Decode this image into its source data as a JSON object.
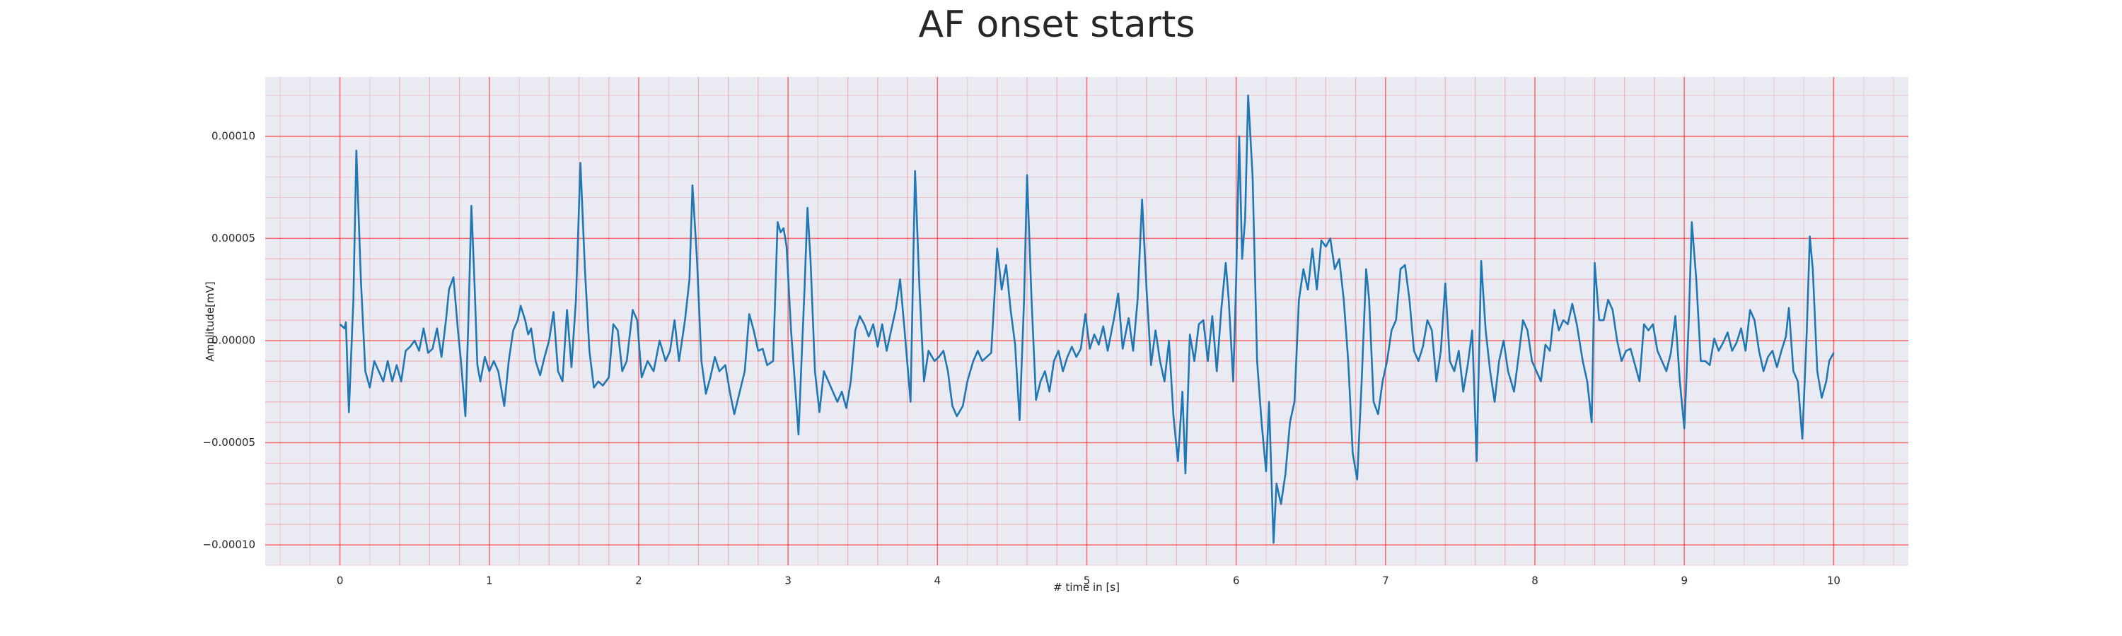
{
  "chart_data": {
    "type": "line",
    "title": "AF onset starts",
    "x_label": "# time in [s]",
    "y_label": "Amplitude[mV]",
    "color": "#1f77b4",
    "grid": true,
    "grid_color": "#ff0000",
    "background": "#eaeaf2",
    "xlim": [
      -0.5,
      10.5
    ],
    "xticks": [
      0,
      1,
      2,
      3,
      4,
      5,
      6,
      7,
      8,
      9,
      10
    ],
    "ylim": [
      -0.00011,
      0.000129
    ],
    "yticks": [
      {
        "value": -0.0001,
        "label": "−0.00010"
      },
      {
        "value": -5e-05,
        "label": "−0.00005"
      },
      {
        "value": 0,
        "label": "0.00000"
      },
      {
        "value": 5e-05,
        "label": "0.00005"
      },
      {
        "value": 0.0001,
        "label": "0.00010"
      }
    ],
    "x": [
      0.0,
      0.03,
      0.04,
      0.06,
      0.09,
      0.11,
      0.14,
      0.17,
      0.2,
      0.23,
      0.26,
      0.29,
      0.32,
      0.35,
      0.38,
      0.41,
      0.44,
      0.47,
      0.5,
      0.53,
      0.56,
      0.59,
      0.62,
      0.65,
      0.68,
      0.71,
      0.73,
      0.76,
      0.79,
      0.81,
      0.84,
      0.86,
      0.88,
      0.9,
      0.92,
      0.94,
      0.97,
      1.0,
      1.03,
      1.06,
      1.1,
      1.13,
      1.16,
      1.19,
      1.21,
      1.24,
      1.26,
      1.28,
      1.31,
      1.34,
      1.37,
      1.4,
      1.43,
      1.46,
      1.49,
      1.52,
      1.55,
      1.58,
      1.61,
      1.64,
      1.67,
      1.7,
      1.73,
      1.76,
      1.8,
      1.83,
      1.86,
      1.89,
      1.92,
      1.96,
      1.99,
      2.02,
      2.06,
      2.1,
      2.14,
      2.18,
      2.21,
      2.24,
      2.27,
      2.31,
      2.34,
      2.36,
      2.39,
      2.42,
      2.45,
      2.48,
      2.51,
      2.54,
      2.58,
      2.61,
      2.64,
      2.68,
      2.71,
      2.74,
      2.77,
      2.8,
      2.83,
      2.86,
      2.9,
      2.93,
      2.95,
      2.97,
      2.99,
      3.02,
      3.05,
      3.07,
      3.09,
      3.11,
      3.13,
      3.15,
      3.18,
      3.21,
      3.24,
      3.27,
      3.3,
      3.33,
      3.36,
      3.39,
      3.42,
      3.45,
      3.48,
      3.51,
      3.54,
      3.57,
      3.6,
      3.63,
      3.66,
      3.69,
      3.72,
      3.75,
      3.78,
      3.82,
      3.85,
      3.88,
      3.91,
      3.94,
      3.98,
      4.01,
      4.04,
      4.07,
      4.1,
      4.13,
      4.17,
      4.2,
      4.24,
      4.27,
      4.3,
      4.33,
      4.36,
      4.4,
      4.43,
      4.46,
      4.49,
      4.52,
      4.55,
      4.58,
      4.6,
      4.63,
      4.66,
      4.69,
      4.72,
      4.75,
      4.78,
      4.81,
      4.84,
      4.87,
      4.9,
      4.93,
      4.96,
      4.99,
      5.02,
      5.05,
      5.08,
      5.11,
      5.14,
      5.18,
      5.21,
      5.24,
      5.28,
      5.31,
      5.34,
      5.37,
      5.4,
      5.43,
      5.46,
      5.49,
      5.52,
      5.55,
      5.58,
      5.61,
      5.64,
      5.66,
      5.69,
      5.72,
      5.75,
      5.78,
      5.81,
      5.84,
      5.87,
      5.9,
      5.93,
      5.95,
      5.98,
      6.0,
      6.02,
      6.04,
      6.06,
      6.08,
      6.11,
      6.14,
      6.17,
      6.2,
      6.22,
      6.25,
      6.27,
      6.3,
      6.33,
      6.36,
      6.39,
      6.42,
      6.45,
      6.48,
      6.51,
      6.54,
      6.57,
      6.6,
      6.63,
      6.66,
      6.69,
      6.72,
      6.75,
      6.78,
      6.81,
      6.84,
      6.87,
      6.89,
      6.92,
      6.95,
      6.98,
      7.01,
      7.04,
      7.07,
      7.1,
      7.13,
      7.16,
      7.19,
      7.22,
      7.25,
      7.28,
      7.31,
      7.34,
      7.37,
      7.4,
      7.43,
      7.46,
      7.49,
      7.52,
      7.55,
      7.58,
      7.61,
      7.64,
      7.67,
      7.7,
      7.73,
      7.76,
      7.79,
      7.82,
      7.86,
      7.89,
      7.92,
      7.95,
      7.98,
      8.01,
      8.04,
      8.07,
      8.1,
      8.13,
      8.16,
      8.19,
      8.22,
      8.25,
      8.28,
      8.32,
      8.35,
      8.38,
      8.4,
      8.43,
      8.46,
      8.49,
      8.52,
      8.55,
      8.58,
      8.61,
      8.64,
      8.67,
      8.7,
      8.73,
      8.76,
      8.79,
      8.82,
      8.85,
      8.88,
      8.91,
      8.94,
      8.97,
      9.0,
      9.03,
      9.05,
      9.08,
      9.11,
      9.14,
      9.17,
      9.2,
      9.23,
      9.26,
      9.29,
      9.32,
      9.35,
      9.38,
      9.41,
      9.44,
      9.47,
      9.5,
      9.53,
      9.56,
      9.59,
      9.62,
      9.65,
      9.68,
      9.7,
      9.73,
      9.76,
      9.79,
      9.82,
      9.84,
      9.86,
      9.89,
      9.92,
      9.95,
      9.97,
      10.0
    ],
    "values": [
      8e-06,
      6e-06,
      9e-06,
      -3.5e-05,
      2e-05,
      9.3e-05,
      3e-05,
      -1.5e-05,
      -2.3e-05,
      -1e-05,
      -1.5e-05,
      -2e-05,
      -1e-05,
      -2e-05,
      -1.2e-05,
      -2e-05,
      -5e-06,
      -3e-06,
      0,
      -5e-06,
      6e-06,
      -6e-06,
      -4e-06,
      6e-06,
      -8e-06,
      1e-05,
      2.5e-05,
      3.1e-05,
      5e-06,
      -1e-05,
      -3.7e-05,
      1e-05,
      6.6e-05,
      3e-05,
      -1.2e-05,
      -2e-05,
      -8e-06,
      -1.5e-05,
      -1e-05,
      -1.5e-05,
      -3.2e-05,
      -1e-05,
      5e-06,
      1e-05,
      1.7e-05,
      1e-05,
      3e-06,
      6e-06,
      -1e-05,
      -1.7e-05,
      -8e-06,
      0,
      1.4e-05,
      -1.5e-05,
      -2e-05,
      1.5e-05,
      -1.3e-05,
      2e-05,
      8.7e-05,
      3.5e-05,
      -5e-06,
      -2.3e-05,
      -2e-05,
      -2.2e-05,
      -1.8e-05,
      8e-06,
      5e-06,
      -1.5e-05,
      -1e-05,
      1.5e-05,
      1e-05,
      -1.8e-05,
      -1e-05,
      -1.5e-05,
      0,
      -1e-05,
      -5e-06,
      1e-05,
      -1e-05,
      1e-05,
      3e-05,
      7.6e-05,
      4e-05,
      -1e-05,
      -2.6e-05,
      -1.8e-05,
      -8e-06,
      -1.5e-05,
      -1.2e-05,
      -2.5e-05,
      -3.6e-05,
      -2.4e-05,
      -1.5e-05,
      1.3e-05,
      5e-06,
      -5e-06,
      -4e-06,
      -1.2e-05,
      -1e-05,
      5.8e-05,
      5.3e-05,
      5.5e-05,
      4.6e-05,
      5e-06,
      -2.5e-05,
      -4.6e-05,
      -1e-05,
      2.5e-05,
      6.5e-05,
      4e-05,
      -1.5e-05,
      -3.5e-05,
      -1.5e-05,
      -2e-05,
      -2.5e-05,
      -3e-05,
      -2.5e-05,
      -3.3e-05,
      -2e-05,
      5e-06,
      1.2e-05,
      8e-06,
      2e-06,
      8e-06,
      -3e-06,
      8e-06,
      -5e-06,
      5e-06,
      1.5e-05,
      3e-05,
      5e-06,
      -3e-05,
      8.3e-05,
      2.5e-05,
      -2e-05,
      -5e-06,
      -1e-05,
      -8e-06,
      -5e-06,
      -1.5e-05,
      -3.2e-05,
      -3.7e-05,
      -3.2e-05,
      -2e-05,
      -1e-05,
      -5e-06,
      -1e-05,
      -8e-06,
      -6e-06,
      4.5e-05,
      2.5e-05,
      3.7e-05,
      1.5e-05,
      -2e-06,
      -3.9e-05,
      2e-05,
      8.1e-05,
      2e-05,
      -2.9e-05,
      -2e-05,
      -1.5e-05,
      -2.5e-05,
      -1e-05,
      -5e-06,
      -1.5e-05,
      -8e-06,
      -3e-06,
      -8e-06,
      -4e-06,
      1.3e-05,
      -4e-06,
      3e-06,
      -2e-06,
      7e-06,
      -5e-06,
      1e-05,
      2.3e-05,
      -4e-06,
      1.1e-05,
      -5e-06,
      2e-05,
      6.9e-05,
      2.5e-05,
      -1.2e-05,
      5e-06,
      -1e-05,
      -2e-05,
      0,
      -3.7e-05,
      -5.9e-05,
      -2.5e-05,
      -6.5e-05,
      3e-06,
      -1e-05,
      8e-06,
      1e-05,
      -1e-05,
      1.2e-05,
      -1.5e-05,
      1.5e-05,
      3.8e-05,
      2e-05,
      -2e-05,
      3e-05,
      0.0001,
      4e-05,
      6e-05,
      0.00012,
      8e-05,
      -1e-05,
      -4e-05,
      -6.4e-05,
      -3e-05,
      -9.9e-05,
      -7e-05,
      -8e-05,
      -6.5e-05,
      -4e-05,
      -3e-05,
      2e-05,
      3.5e-05,
      2.5e-05,
      4.5e-05,
      2.5e-05,
      4.9e-05,
      4.6e-05,
      5e-05,
      3.5e-05,
      4e-05,
      2e-05,
      -1e-05,
      -5.5e-05,
      -6.8e-05,
      -2e-05,
      3.5e-05,
      2e-05,
      -3e-05,
      -3.6e-05,
      -2e-05,
      -1e-05,
      5e-06,
      1e-05,
      3.5e-05,
      3.7e-05,
      2e-05,
      -5e-06,
      -1e-05,
      -3e-06,
      1e-05,
      5e-06,
      -2e-05,
      -5e-06,
      2.8e-05,
      -1e-05,
      -1.5e-05,
      -5e-06,
      -2.5e-05,
      -1.2e-05,
      5e-06,
      -5.9e-05,
      3.9e-05,
      5e-06,
      -1.5e-05,
      -3e-05,
      -1e-05,
      0,
      -1.5e-05,
      -2.5e-05,
      -8e-06,
      1e-05,
      5e-06,
      -1e-05,
      -1.5e-05,
      -2e-05,
      -2e-06,
      -5e-06,
      1.5e-05,
      5e-06,
      1e-05,
      8e-06,
      1.8e-05,
      8e-06,
      -1e-05,
      -2e-05,
      -4e-05,
      3.8e-05,
      1e-05,
      1e-05,
      2e-05,
      1.5e-05,
      0,
      -1e-05,
      -5e-06,
      -4e-06,
      -1.2e-05,
      -2e-05,
      8e-06,
      5e-06,
      8e-06,
      -5e-06,
      -1e-05,
      -1.5e-05,
      -6e-06,
      1.2e-05,
      -2e-05,
      -4.3e-05,
      1e-05,
      5.8e-05,
      3e-05,
      -1e-05,
      -1e-05,
      -1.2e-05,
      1e-06,
      -5e-06,
      -1e-06,
      4e-06,
      -5e-06,
      -1e-06,
      6e-06,
      -5e-06,
      1.5e-05,
      1e-05,
      -5e-06,
      -1.5e-05,
      -8e-06,
      -5e-06,
      -1.3e-05,
      -5e-06,
      2e-06,
      1.6e-05,
      -1.5e-05,
      -2e-05,
      -4.8e-05,
      5e-06,
      5.1e-05,
      3.5e-05,
      -1.5e-05,
      -2.8e-05,
      -2e-05,
      -1e-05,
      -6e-06
    ]
  }
}
